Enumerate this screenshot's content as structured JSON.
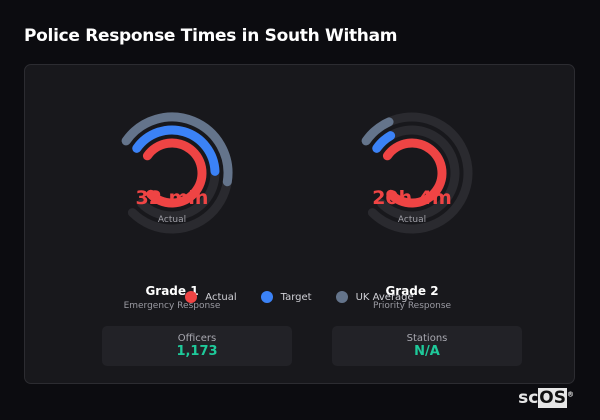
{
  "title": "Police Response Times in South Witham",
  "colors": {
    "actual": "#ef4444",
    "target": "#3b82f6",
    "uk_average": "#64748b",
    "track": "#2a2a2f",
    "stat_value": "#1ec99a"
  },
  "gauges": [
    {
      "value": "32 min",
      "value_label": "Actual",
      "name": "Grade 1",
      "description": "Emergency Response",
      "fill": {
        "actual": 1.0,
        "target": 0.51,
        "uk_average": 0.55
      }
    },
    {
      "value": "20h 4m",
      "value_label": "Actual",
      "name": "Grade 2",
      "description": "Priority Response",
      "fill": {
        "actual": 1.0,
        "target": 0.09,
        "uk_average": 0.11
      }
    }
  ],
  "legend": [
    {
      "label": "Actual",
      "color": "#ef4444"
    },
    {
      "label": "Target",
      "color": "#3b82f6"
    },
    {
      "label": "UK Average",
      "color": "#64748b"
    }
  ],
  "stats": [
    {
      "label": "Officers",
      "value": "1,173"
    },
    {
      "label": "Stations",
      "value": "N/A"
    }
  ],
  "logo": {
    "text_a": "sc",
    "text_b": "OS",
    "mark": "®"
  }
}
